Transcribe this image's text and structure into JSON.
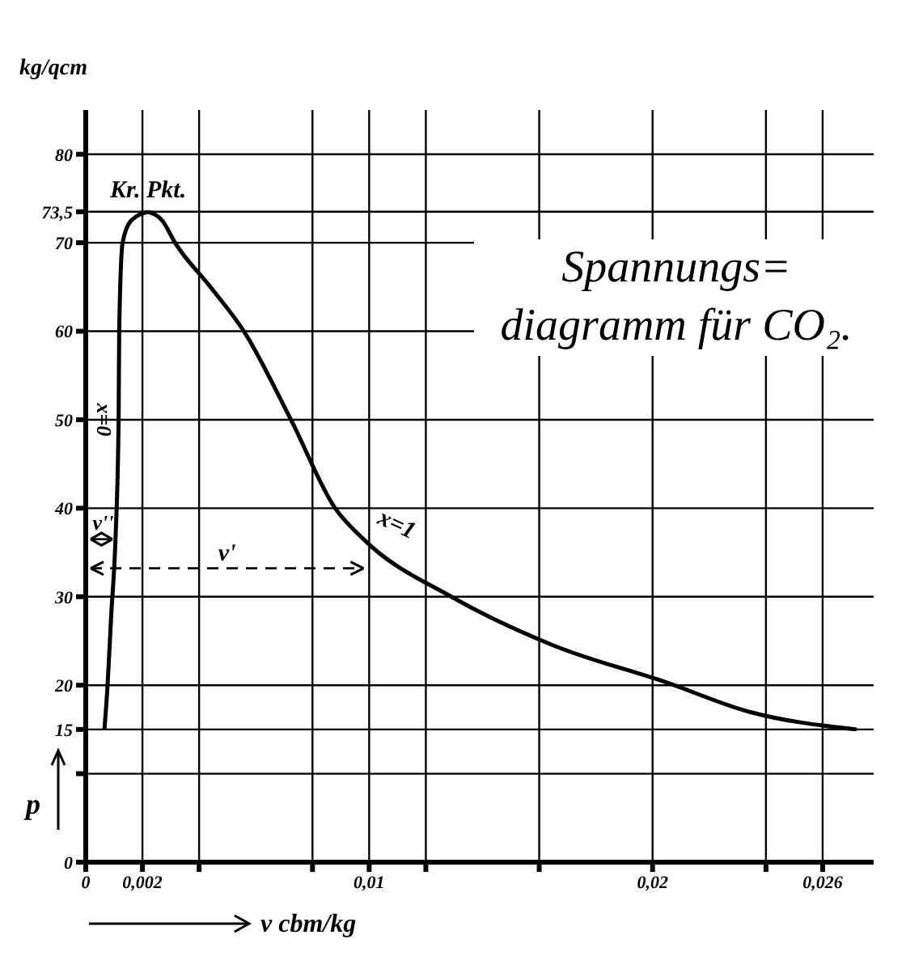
{
  "chart_data": {
    "type": "line",
    "title": "Spannungs=diagramm für CO₂.",
    "xlabel": "v cbm/kg",
    "ylabel": "p",
    "annotations": [
      {
        "text": "Kr. Pkt.",
        "x": 0.0022,
        "y": 73.5
      },
      "v''",
      "v'",
      "kg/qcm"
    ],
    "series": [
      {
        "name": "x=0",
        "color": "#000000",
        "x": [
          0.00066,
          0.00077,
          0.0009,
          0.00105,
          0.00116,
          0.00118,
          0.0013,
          0.0016,
          0.0022
        ],
        "values": [
          15,
          20,
          28,
          36.5,
          50,
          60,
          70,
          72.5,
          73.5
        ]
      },
      {
        "name": "x=1",
        "color": "#000000",
        "x": [
          0.0022,
          0.0027,
          0.00315,
          0.0044,
          0.00558,
          0.00724,
          0.0088,
          0.0098,
          0.0129,
          0.0165,
          0.0205,
          0.0234,
          0.0272
        ],
        "values": [
          73.5,
          72.5,
          70,
          65,
          60,
          50,
          40,
          36.5,
          30,
          24.5,
          20.3,
          17,
          15
        ]
      }
    ],
    "xlim": [
      0,
      0.0278
    ],
    "ylim": [
      0,
      85
    ],
    "xticks": [
      0,
      {
        "value": 0.002,
        "label": "0,002"
      },
      {
        "value": 0.004,
        "label": null
      },
      {
        "value": 0.008,
        "label": null
      },
      {
        "value": 0.01,
        "label": "0,01"
      },
      {
        "value": 0.012,
        "label": null
      },
      {
        "value": 0.016,
        "label": null
      },
      {
        "value": 0.02,
        "label": "0,02"
      },
      {
        "value": 0.024,
        "label": null
      },
      {
        "value": 0.026,
        "label": "0,026"
      }
    ],
    "yticks": [
      0,
      {
        "value": 10,
        "label": null
      },
      15,
      20,
      30,
      40,
      50,
      60,
      70,
      {
        "value": 73.5,
        "label": "73,5"
      },
      80
    ],
    "grid": true,
    "legend": "left",
    "marker": "none",
    "line_style": "solid"
  }
}
